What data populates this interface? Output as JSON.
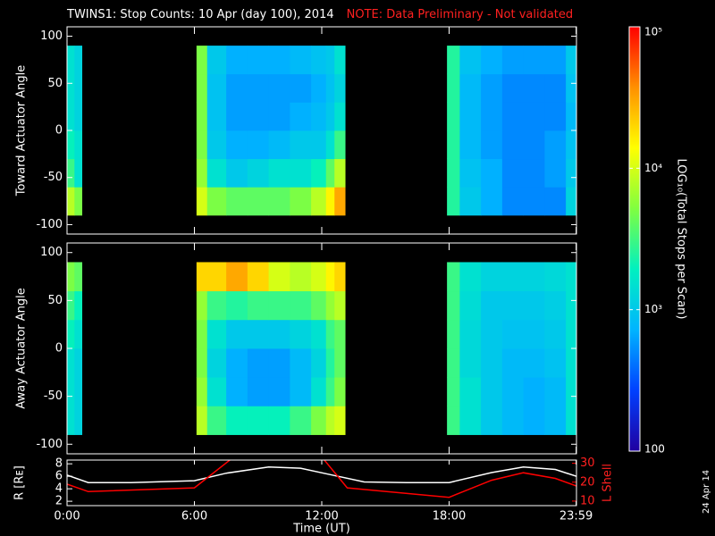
{
  "chart_data": [
    {
      "type": "heatmap",
      "title": "TWINS1: Stop Counts: 10 Apr (day 100), 2014",
      "note": "NOTE: Data Preliminary - Not validated",
      "ylabel": "Toward Actuator Angle",
      "xlim": [
        0,
        24
      ],
      "xticks": [
        {
          "value": 0,
          "label": "0:00"
        },
        {
          "value": 6,
          "label": "6:00"
        },
        {
          "value": 12,
          "label": "12:00"
        },
        {
          "value": 18,
          "label": "18:00"
        },
        {
          "value": 23.983,
          "label": "23:59"
        }
      ],
      "ylim": [
        -110,
        110
      ],
      "yticks": [
        -100,
        -50,
        0,
        50,
        100
      ],
      "x": [
        0,
        0.35,
        0.7,
        6.1,
        6.6,
        7.5,
        8.5,
        9.5,
        10.5,
        11.5,
        12.2,
        12.6,
        13.1,
        17.9,
        18.5,
        19.5,
        20.5,
        21.5,
        22.5,
        23.5,
        24
      ],
      "y": [
        -90,
        -60,
        -30,
        0,
        30,
        60,
        90
      ],
      "z": [
        [
          8000,
          5000,
          null,
          10000,
          5000,
          4000,
          4000,
          4000,
          5000,
          8000,
          15000,
          30000,
          null,
          2500,
          1000,
          700,
          500,
          500,
          500,
          1200
        ],
        [
          3000,
          1500,
          null,
          6000,
          1500,
          1000,
          1200,
          1500,
          1500,
          2000,
          4000,
          8000,
          null,
          2500,
          900,
          700,
          500,
          500,
          600,
          1000
        ],
        [
          2000,
          1500,
          null,
          5000,
          1000,
          700,
          700,
          800,
          1000,
          1000,
          1500,
          3000,
          null,
          2500,
          800,
          600,
          500,
          500,
          600,
          900
        ],
        [
          1500,
          1200,
          null,
          5000,
          900,
          600,
          600,
          600,
          700,
          800,
          1000,
          1500,
          null,
          2500,
          800,
          600,
          500,
          500,
          500,
          800
        ],
        [
          1500,
          1200,
          null,
          5000,
          900,
          600,
          600,
          600,
          600,
          700,
          900,
          1200,
          null,
          2500,
          800,
          600,
          500,
          500,
          500,
          900
        ],
        [
          1500,
          1200,
          null,
          5000,
          1000,
          700,
          700,
          700,
          800,
          900,
          1000,
          1500,
          null,
          2500,
          900,
          700,
          600,
          600,
          600,
          1000
        ]
      ],
      "colorbar": {
        "label": "LOG₁₀(Total Stops per Scan)",
        "zlim": [
          100,
          100000
        ],
        "log": true,
        "zticks": [
          {
            "value": 100000,
            "label": "10⁵"
          },
          {
            "value": 10000,
            "label": "10⁴"
          },
          {
            "value": 1000,
            "label": "10³"
          },
          100
        ],
        "colors": [
          "#2000a0",
          "#0040ff",
          "#00b4ff",
          "#00f0c0",
          "#80ff40",
          "#ffff00",
          "#ff9000",
          "#ff0000"
        ]
      }
    },
    {
      "type": "heatmap",
      "ylabel": "Away Actuator Angle",
      "xlim": [
        0,
        24
      ],
      "xticks": [
        {
          "value": 0,
          "label": "0:00"
        },
        {
          "value": 6,
          "label": "6:00"
        },
        {
          "value": 12,
          "label": "12:00"
        },
        {
          "value": 18,
          "label": "18:00"
        },
        {
          "value": 23.983,
          "label": "23:59"
        }
      ],
      "ylim": [
        -110,
        110
      ],
      "yticks": [
        -100,
        -50,
        0,
        50,
        100
      ],
      "x": [
        0,
        0.35,
        0.7,
        6.1,
        6.6,
        7.5,
        8.5,
        9.5,
        10.5,
        11.5,
        12.2,
        12.6,
        13.1,
        17.9,
        18.5,
        19.5,
        20.5,
        21.5,
        22.5,
        23.5,
        24
      ],
      "y": [
        -90,
        -60,
        -30,
        0,
        30,
        60,
        90
      ],
      "z": [
        [
          1500,
          1200,
          null,
          8000,
          3000,
          2000,
          2000,
          2000,
          3000,
          5000,
          8000,
          10000,
          null,
          3000,
          1500,
          1000,
          800,
          700,
          800,
          1500
        ],
        [
          1500,
          1200,
          null,
          6000,
          1500,
          700,
          600,
          600,
          800,
          1500,
          3000,
          5000,
          null,
          3000,
          1500,
          1000,
          800,
          700,
          800,
          1500
        ],
        [
          1500,
          1200,
          null,
          5000,
          1200,
          700,
          600,
          600,
          800,
          1200,
          2500,
          4000,
          null,
          3000,
          1300,
          1000,
          800,
          800,
          900,
          1500
        ],
        [
          2000,
          1500,
          null,
          5000,
          1500,
          1000,
          1000,
          1000,
          1200,
          1500,
          3000,
          4000,
          null,
          3000,
          1300,
          1000,
          900,
          900,
          1000,
          1500
        ],
        [
          3000,
          2000,
          null,
          6000,
          3000,
          2500,
          3000,
          3000,
          3000,
          4000,
          6000,
          8000,
          null,
          3000,
          1400,
          1000,
          1000,
          1000,
          1100,
          1500
        ],
        [
          5000,
          4000,
          null,
          20000,
          20000,
          30000,
          20000,
          10000,
          8000,
          10000,
          15000,
          20000,
          null,
          3000,
          1500,
          1200,
          1200,
          1200,
          1300,
          1500
        ]
      ]
    },
    {
      "type": "line",
      "xlabel": "Time (UT)",
      "ylabel": "R [Rᴇ]",
      "y2label": "L Shell",
      "stamp": "24 Apr 14",
      "xlim": [
        0,
        24
      ],
      "xticks": [
        {
          "value": 0,
          "label": "0:00"
        },
        {
          "value": 6,
          "label": "6:00"
        },
        {
          "value": 12,
          "label": "12:00"
        },
        {
          "value": 18,
          "label": "18:00"
        },
        {
          "value": 23.983,
          "label": "23:59"
        }
      ],
      "ylim": [
        1.3,
        8.6
      ],
      "yticks": [
        2,
        4,
        6,
        8
      ],
      "y2lim": [
        7.6,
        31.7
      ],
      "y2ticks": [
        10,
        20,
        30
      ],
      "series": [
        {
          "name": "R",
          "color": "#ffffff",
          "x": [
            0,
            1,
            3,
            6,
            7.5,
            9.5,
            11,
            12.5,
            14,
            16,
            18,
            20,
            21.5,
            23,
            24
          ],
          "values": [
            6.2,
            5,
            5,
            5.3,
            6.5,
            7.5,
            7.3,
            6.2,
            5.1,
            5,
            5,
            6.6,
            7.5,
            7.1,
            6
          ]
        },
        {
          "name": "L Shell",
          "color": "#ff0000",
          "axis": "y2",
          "x": [
            0,
            1,
            6,
            7.7,
            10,
            12.1,
            13.2,
            18,
            20,
            21.5,
            23,
            24
          ],
          "values": [
            19,
            15,
            17,
            32,
            null,
            32,
            17,
            12,
            21,
            25,
            22,
            18
          ]
        }
      ]
    }
  ]
}
